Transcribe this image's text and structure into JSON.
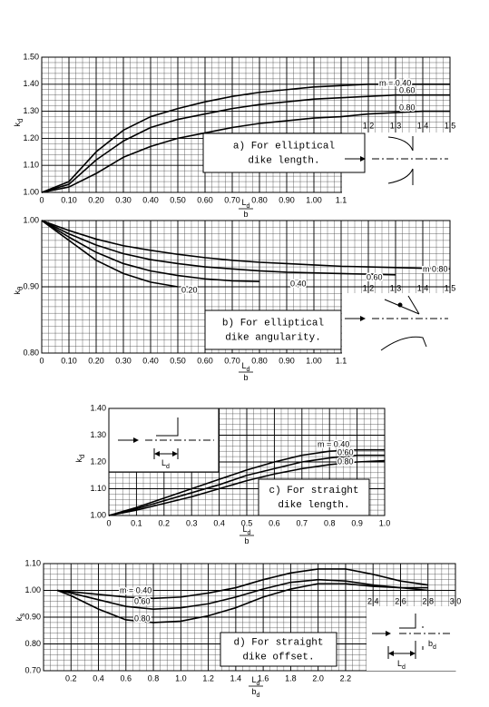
{
  "chart_data": [
    {
      "type": "line",
      "ylabel": {
        "text": "k",
        "sub": "d"
      },
      "xlabel": {
        "num": "L",
        "num_sub": "d",
        "den": "b"
      },
      "annotation": [
        "a)  For elliptical",
        "dike length."
      ],
      "xlim": [
        0,
        1.5
      ],
      "ylim": [
        1.0,
        1.5
      ],
      "xminor": 0.025,
      "yminor": 0.02,
      "grid": true,
      "yticks": [
        {
          "value": 1.0,
          "label": "1.00"
        },
        {
          "value": 1.1,
          "label": "1.10"
        },
        {
          "value": 1.2,
          "label": "1.20"
        },
        {
          "value": 1.3,
          "label": "1.30"
        },
        {
          "value": 1.4,
          "label": "1.40"
        },
        {
          "value": 1.5,
          "label": "1.50"
        }
      ],
      "xticks": [
        0,
        {
          "value": 0.1,
          "label": "0.10"
        },
        {
          "value": 0.2,
          "label": "0.20"
        },
        {
          "value": 0.3,
          "label": "0.30"
        },
        {
          "value": 0.4,
          "label": "0.40"
        },
        {
          "value": 0.5,
          "label": "0.50"
        },
        {
          "value": 0.6,
          "label": "0.60"
        },
        {
          "value": 0.7,
          "label": "0.70"
        },
        {
          "value": 0.8,
          "label": "0.80"
        },
        {
          "value": 0.9,
          "label": "0.90"
        },
        {
          "value": 1.0,
          "label": "1.00"
        },
        1.1
      ],
      "xticks_upper": [
        1.2,
        1.3,
        1.4,
        1.5
      ],
      "x": [
        0,
        0.1,
        0.2,
        0.3,
        0.4,
        0.5,
        0.6,
        0.7,
        0.8,
        0.9,
        1.0,
        1.1,
        1.2,
        1.3,
        1.4,
        1.5
      ],
      "series": [
        {
          "name": "m = 0.40",
          "color": "#000000",
          "values": [
            1.0,
            1.04,
            1.15,
            1.23,
            1.28,
            1.31,
            1.335,
            1.355,
            1.37,
            1.38,
            1.39,
            1.395,
            1.4,
            1.4,
            1.4,
            1.4
          ]
        },
        {
          "name": "0.60",
          "color": "#000000",
          "values": [
            1.0,
            1.03,
            1.12,
            1.19,
            1.24,
            1.27,
            1.29,
            1.31,
            1.325,
            1.335,
            1.345,
            1.35,
            1.355,
            1.36,
            1.36,
            1.36
          ]
        },
        {
          "name": "0.80",
          "color": "#000000",
          "values": [
            1.0,
            1.02,
            1.07,
            1.13,
            1.17,
            1.2,
            1.22,
            1.24,
            1.255,
            1.265,
            1.275,
            1.28,
            1.29,
            1.295,
            1.3,
            1.3
          ]
        }
      ]
    },
    {
      "type": "line",
      "ylabel": {
        "text": "k",
        "sub": "θ"
      },
      "xlabel": {
        "num": "L",
        "num_sub": "d",
        "den": "b"
      },
      "annotation": [
        "b)  For elliptical",
        "dike angularity."
      ],
      "xlim": [
        0,
        1.5
      ],
      "ylim": [
        0.8,
        1.0
      ],
      "xminor": 0.025,
      "yminor": 0.01,
      "grid": true,
      "yticks": [
        {
          "value": 0.8,
          "label": "0.80"
        },
        {
          "value": 0.9,
          "label": "0.90"
        },
        {
          "value": 1.0,
          "label": "1.00"
        }
      ],
      "xticks": [
        0,
        {
          "value": 0.1,
          "label": "0.10"
        },
        {
          "value": 0.2,
          "label": "0.20"
        },
        {
          "value": 0.3,
          "label": "0.30"
        },
        {
          "value": 0.4,
          "label": "0.40"
        },
        {
          "value": 0.5,
          "label": "0.50"
        },
        {
          "value": 0.6,
          "label": "0.60"
        },
        {
          "value": 0.7,
          "label": "0.70"
        },
        {
          "value": 0.8,
          "label": "0.80"
        },
        {
          "value": 0.9,
          "label": "0.90"
        },
        {
          "value": 1.0,
          "label": "1.00"
        },
        1.1
      ],
      "xticks_upper": [
        1.2,
        1.3,
        1.4,
        1.5
      ],
      "x": [
        0,
        0.1,
        0.2,
        0.3,
        0.4,
        0.5,
        0.6,
        0.7,
        0.8,
        0.9,
        1.0,
        1.1,
        1.2,
        1.3,
        1.4,
        1.5
      ],
      "series": [
        {
          "name": "m 0.80",
          "color": "#000000",
          "values": [
            1.0,
            0.985,
            0.972,
            0.962,
            0.955,
            0.949,
            0.944,
            0.94,
            0.937,
            0.935,
            0.933,
            0.931,
            0.93,
            0.929,
            0.928,
            0.927
          ]
        },
        {
          "name": "0.60",
          "color": "#000000",
          "values": [
            1.0,
            0.98,
            0.963,
            0.95,
            0.941,
            0.935,
            0.93,
            0.927,
            0.924,
            0.922,
            0.921,
            0.92,
            0.919,
            0.918,
            null,
            null
          ]
        },
        {
          "name": "0.40",
          "color": "#000000",
          "values": [
            1.0,
            0.975,
            0.952,
            0.935,
            0.924,
            0.917,
            0.912,
            0.909,
            0.908,
            null,
            null,
            null,
            null,
            null,
            null,
            null
          ]
        },
        {
          "name": "0.20",
          "color": "#000000",
          "values": [
            1.0,
            0.97,
            0.94,
            0.92,
            0.907,
            0.9,
            null,
            null,
            null,
            null,
            null,
            null,
            null,
            null,
            null,
            null
          ]
        }
      ]
    },
    {
      "type": "line",
      "ylabel": {
        "text": "k",
        "sub": "d"
      },
      "xlabel": {
        "num": "L",
        "num_sub": "d",
        "den": "b"
      },
      "annotation": [
        "c)  For straight",
        "dike length."
      ],
      "inset_labels": [
        {
          "text": "L",
          "sub": "d"
        }
      ],
      "xlim": [
        0,
        1.0
      ],
      "ylim": [
        1.0,
        1.4
      ],
      "xminor": 0.025,
      "yminor": 0.02,
      "grid": true,
      "yticks": [
        {
          "value": 1.0,
          "label": "1.00"
        },
        {
          "value": 1.1,
          "label": "1.10"
        },
        {
          "value": 1.2,
          "label": "1.20"
        },
        {
          "value": 1.3,
          "label": "1.30"
        },
        {
          "value": 1.4,
          "label": "1.40"
        }
      ],
      "xticks": [
        0,
        0.1,
        0.2,
        0.3,
        0.4,
        0.5,
        0.6,
        0.7,
        0.8,
        0.9,
        {
          "value": 1.0,
          "label": "1.0"
        }
      ],
      "x": [
        0,
        0.1,
        0.2,
        0.3,
        0.4,
        0.5,
        0.6,
        0.7,
        0.8,
        0.9,
        1.0
      ],
      "series": [
        {
          "name": "m = 0.40",
          "color": "#000000",
          "values": [
            1.0,
            1.03,
            1.065,
            1.1,
            1.135,
            1.17,
            1.2,
            1.225,
            1.24,
            1.245,
            1.245
          ]
        },
        {
          "name": "0.60",
          "color": "#000000",
          "values": [
            1.0,
            1.025,
            1.055,
            1.085,
            1.115,
            1.15,
            1.175,
            1.2,
            1.215,
            1.225,
            1.225
          ]
        },
        {
          "name": "0.80",
          "color": "#000000",
          "values": [
            1.0,
            1.02,
            1.045,
            1.07,
            1.1,
            1.13,
            1.155,
            1.175,
            1.19,
            1.2,
            1.205
          ]
        }
      ]
    },
    {
      "type": "line",
      "ylabel": {
        "text": "k",
        "sub": "s"
      },
      "xlabel": {
        "num": "L",
        "num_sub": "d",
        "den": "b",
        "den_sub": "d"
      },
      "annotation": [
        "d)  For straight",
        "dike offset."
      ],
      "inset_labels": [
        {
          "text": "b",
          "sub": "d"
        },
        {
          "text": "L",
          "sub": "d"
        }
      ],
      "xlim": [
        0,
        3.0
      ],
      "ylim": [
        0.7,
        1.1
      ],
      "xminor": 0.05,
      "yminor": 0.02,
      "grid": true,
      "yticks": [
        {
          "value": 0.7,
          "label": "0.70"
        },
        {
          "value": 0.8,
          "label": "0.80"
        },
        {
          "value": 0.9,
          "label": "0.90"
        },
        {
          "value": 1.0,
          "label": "1.00"
        },
        {
          "value": 1.1,
          "label": "1.10"
        }
      ],
      "xticks": [
        0.2,
        0.4,
        0.6,
        0.8,
        {
          "value": 1.0,
          "label": "1.0"
        },
        1.2,
        1.4,
        1.6,
        1.8,
        {
          "value": 2.0,
          "label": "2.0"
        },
        2.2
      ],
      "xticks_upper": [
        2.4,
        2.6,
        2.8,
        {
          "value": 3.0,
          "label": "3.0"
        }
      ],
      "x": [
        0.1,
        0.2,
        0.4,
        0.6,
        0.8,
        1.0,
        1.2,
        1.4,
        1.6,
        1.8,
        2.0,
        2.2,
        2.4,
        2.6,
        2.8
      ],
      "series": [
        {
          "name": "m = 0.40",
          "color": "#000000",
          "values": [
            1.0,
            0.995,
            0.985,
            0.975,
            0.97,
            0.975,
            0.99,
            1.01,
            1.04,
            1.065,
            1.08,
            1.08,
            1.06,
            1.035,
            1.02
          ]
        },
        {
          "name": "0.60",
          "color": "#000000",
          "values": [
            1.0,
            0.99,
            0.965,
            0.94,
            0.93,
            0.935,
            0.95,
            0.975,
            1.005,
            1.03,
            1.04,
            1.035,
            1.02,
            1.01,
            1.01
          ]
        },
        {
          "name": "0.80",
          "color": "#000000",
          "values": [
            1.0,
            0.98,
            0.93,
            0.89,
            0.88,
            0.885,
            0.905,
            0.935,
            0.975,
            1.005,
            1.025,
            1.025,
            1.015,
            1.01,
            1.0
          ]
        }
      ]
    }
  ]
}
